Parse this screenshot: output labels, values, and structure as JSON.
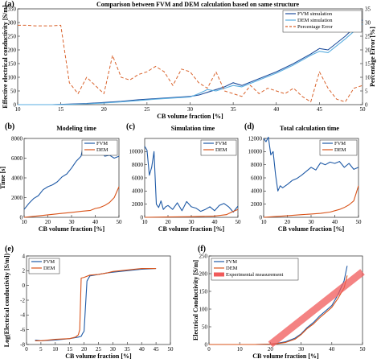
{
  "chart_data": [
    {
      "panel_label": "(a)",
      "type": "line",
      "title": "Comparison between FVM and DEM calculation based on same structure",
      "xlabel": "CB volume fraction [%]",
      "ylabel": "Effective electrical conductivity [S/m]",
      "ylabel_right": "Percentage Error [%]",
      "xlim": [
        10,
        50
      ],
      "ylim": [
        0,
        350
      ],
      "ylim_right": [
        0,
        35
      ],
      "xticks": [
        10,
        15,
        20,
        25,
        30,
        35,
        40,
        45,
        50
      ],
      "yticks": [
        0,
        50,
        100,
        150,
        200,
        250,
        300,
        350
      ],
      "yticks_right": [
        0,
        5,
        10,
        15,
        20,
        25,
        30,
        35
      ],
      "legend": [
        "FVM simulation",
        "DEM simulation",
        "Percentage Error"
      ],
      "colors": {
        "FVM simulation": "#1f4e9c",
        "DEM simulation": "#5aaee0",
        "Percentage Error": "#d9622b"
      },
      "series": [
        {
          "name": "FVM simulation",
          "axis": "left",
          "x": [
            10,
            12,
            14,
            16,
            18,
            20,
            22,
            24,
            26,
            28,
            30,
            31,
            32,
            33,
            34,
            35,
            36,
            38,
            40,
            42,
            44,
            45,
            46,
            48,
            50
          ],
          "y": [
            0,
            0,
            0,
            2,
            4,
            8,
            12,
            18,
            22,
            26,
            30,
            35,
            45,
            55,
            65,
            80,
            70,
            95,
            120,
            150,
            185,
            205,
            200,
            250,
            310
          ]
        },
        {
          "name": "DEM simulation",
          "axis": "left",
          "x": [
            10,
            12,
            14,
            16,
            18,
            20,
            22,
            24,
            26,
            28,
            30,
            31,
            32,
            33,
            34,
            35,
            36,
            38,
            40,
            42,
            44,
            45,
            46,
            48,
            50
          ],
          "y": [
            0,
            0,
            0,
            1,
            3,
            6,
            10,
            15,
            20,
            24,
            28,
            40,
            55,
            50,
            60,
            70,
            65,
            90,
            115,
            145,
            180,
            195,
            190,
            240,
            295
          ]
        },
        {
          "name": "Percentage Error",
          "axis": "right",
          "x": [
            10,
            11,
            12,
            13,
            14,
            15,
            16,
            17,
            18,
            19,
            20,
            21,
            22,
            23,
            24,
            25,
            26,
            27,
            28,
            29,
            30,
            31,
            32,
            33,
            34,
            35,
            36,
            37,
            38,
            39,
            40,
            41,
            42,
            43,
            44,
            45,
            46,
            47,
            48,
            49,
            50
          ],
          "y": [
            29,
            29,
            28.8,
            28.8,
            28.8,
            29,
            8,
            4,
            10,
            7,
            4,
            18,
            10,
            9,
            11,
            12,
            14,
            12,
            7,
            13,
            12,
            8,
            6,
            12,
            5,
            4,
            3,
            7,
            4,
            6,
            5,
            4,
            6,
            3,
            1,
            12,
            6,
            2,
            1,
            6,
            7
          ]
        }
      ]
    },
    {
      "panel_label": "(b)",
      "type": "line",
      "title": "Modeling time",
      "xlabel": "CB volume fraction [%]",
      "ylabel": "Time [s]",
      "xlim": [
        10,
        50
      ],
      "ylim": [
        0,
        8000
      ],
      "xticks": [
        10,
        20,
        30,
        40,
        50
      ],
      "yticks": [
        0,
        2000,
        4000,
        6000,
        8000
      ],
      "legend": [
        "FVM",
        "DEM"
      ],
      "series": [
        {
          "name": "FVM",
          "x": [
            10,
            12,
            14,
            16,
            18,
            20,
            22,
            24,
            26,
            28,
            30,
            32,
            34,
            35,
            36,
            37,
            38,
            39,
            40,
            42,
            44,
            46,
            48,
            50
          ],
          "y": [
            800,
            1400,
            1900,
            2200,
            2800,
            3100,
            3300,
            3600,
            4100,
            4400,
            5000,
            5700,
            6200,
            7300,
            7000,
            6500,
            6800,
            6400,
            6600,
            6900,
            6200,
            6300,
            6000,
            6200
          ]
        },
        {
          "name": "DEM",
          "x": [
            10,
            14,
            18,
            22,
            26,
            30,
            34,
            38,
            40,
            42,
            44,
            46,
            48,
            50
          ],
          "y": [
            0,
            100,
            200,
            300,
            400,
            500,
            600,
            700,
            900,
            1000,
            1200,
            1500,
            2000,
            3100
          ]
        }
      ]
    },
    {
      "panel_label": "(c)",
      "type": "line",
      "title": "Simulation time",
      "xlabel": "CB volume fraction [%]",
      "ylabel": "",
      "xlim": [
        10,
        50
      ],
      "ylim": [
        0,
        12000
      ],
      "xticks": [
        10,
        20,
        30,
        40,
        50
      ],
      "yticks": [
        0,
        2000,
        4000,
        6000,
        8000,
        10000
      ],
      "legend": [
        "FVM",
        "DEM"
      ],
      "series": [
        {
          "name": "FVM",
          "x": [
            10,
            11,
            12,
            13,
            14,
            15,
            16,
            17,
            18,
            19,
            20,
            22,
            24,
            26,
            28,
            30,
            32,
            34,
            36,
            38,
            40,
            42,
            44,
            46,
            48,
            50
          ],
          "y": [
            10800,
            10200,
            6400,
            7600,
            10000,
            2000,
            1500,
            2500,
            1200,
            1600,
            1800,
            1200,
            2200,
            1000,
            2400,
            1600,
            1400,
            900,
            1200,
            1600,
            1000,
            1800,
            2100,
            1600,
            800,
            1700
          ]
        },
        {
          "name": "DEM",
          "x": [
            10,
            20,
            30,
            40,
            45,
            48,
            50
          ],
          "y": [
            0,
            50,
            100,
            200,
            400,
            900,
            1200
          ]
        }
      ]
    },
    {
      "panel_label": "(d)",
      "type": "line",
      "title": "Total calculation time",
      "xlabel": "CB volume fraction [%]",
      "ylabel": "",
      "xlim": [
        10,
        50
      ],
      "ylim": [
        0,
        12000
      ],
      "xticks": [
        10,
        20,
        30,
        40,
        50
      ],
      "yticks": [
        0,
        2000,
        4000,
        6000,
        8000,
        10000,
        12000
      ],
      "legend": [
        "FVM",
        "DEM"
      ],
      "series": [
        {
          "name": "FVM",
          "x": [
            10,
            11,
            12,
            13,
            14,
            15,
            16,
            17,
            18,
            20,
            22,
            24,
            26,
            28,
            30,
            32,
            34,
            36,
            38,
            40,
            42,
            44,
            46,
            48,
            50
          ],
          "y": [
            12000,
            11500,
            12200,
            9500,
            10000,
            6500,
            4000,
            4800,
            4500,
            5000,
            5600,
            5900,
            6400,
            7000,
            7600,
            7200,
            8300,
            8000,
            8400,
            8200,
            8500,
            7600,
            8200,
            7300,
            7600
          ]
        },
        {
          "name": "DEM",
          "x": [
            10,
            14,
            18,
            22,
            26,
            30,
            34,
            38,
            40,
            42,
            44,
            46,
            48,
            50
          ],
          "y": [
            0,
            100,
            200,
            300,
            400,
            500,
            600,
            800,
            1000,
            1200,
            1500,
            1900,
            2500,
            4800
          ]
        }
      ]
    },
    {
      "panel_label": "(e)",
      "type": "line",
      "xlabel": "CB volume fraction [%]",
      "ylabel": "Log(Electrical conductivity [S/m])",
      "xlim": [
        0,
        50
      ],
      "ylim": [
        -8,
        4
      ],
      "xticks": [
        0,
        5,
        10,
        15,
        20,
        25,
        30,
        35,
        40,
        45,
        50
      ],
      "yticks": [
        -8,
        -6,
        -4,
        -2,
        0,
        2,
        4
      ],
      "legend": [
        "FVM",
        "DEM"
      ],
      "series": [
        {
          "name": "FVM",
          "x": [
            3,
            5,
            10,
            15,
            18,
            19,
            19.5,
            20,
            21,
            22,
            25,
            28,
            30,
            35,
            40,
            45
          ],
          "y": [
            -7.4,
            -7.5,
            -7.4,
            -7.2,
            -7.0,
            -6.9,
            -6.5,
            -6.2,
            0.6,
            1.3,
            1.5,
            1.7,
            1.8,
            2.0,
            2.2,
            2.3
          ]
        },
        {
          "name": "DEM",
          "x": [
            3,
            5,
            10,
            15,
            17,
            18,
            18.5,
            19,
            20,
            22,
            25,
            28,
            30,
            35,
            40,
            45
          ],
          "y": [
            -7.5,
            -7.5,
            -7.3,
            -7.2,
            -7.0,
            -6.7,
            -6.0,
            1.0,
            1.1,
            1.4,
            1.5,
            1.7,
            1.9,
            2.1,
            2.3,
            2.3
          ]
        }
      ]
    },
    {
      "panel_label": "(f)",
      "type": "line",
      "xlabel": "CB volume fraction [%]",
      "ylabel": "Electrical Conductivity [S/m]",
      "xlim": [
        0,
        50
      ],
      "ylim": [
        0,
        250
      ],
      "xticks": [
        0,
        10,
        20,
        30,
        40,
        50
      ],
      "yticks": [
        0,
        50,
        100,
        150,
        200,
        250
      ],
      "legend": [
        "FVM",
        "DEM",
        "Experimental measurement"
      ],
      "series": [
        {
          "name": "FVM",
          "x": [
            0,
            5,
            10,
            15,
            20,
            22,
            25,
            28,
            30,
            32,
            34,
            36,
            38,
            40,
            42,
            44,
            45
          ],
          "y": [
            0,
            0,
            0,
            0,
            1,
            3,
            8,
            18,
            30,
            48,
            62,
            80,
            95,
            110,
            140,
            180,
            222
          ]
        },
        {
          "name": "DEM",
          "x": [
            0,
            5,
            10,
            15,
            20,
            22,
            25,
            28,
            30,
            32,
            34,
            36,
            38,
            40,
            42,
            44,
            45
          ],
          "y": [
            0,
            0,
            0,
            0,
            1,
            2,
            6,
            15,
            28,
            45,
            58,
            75,
            90,
            105,
            130,
            160,
            195
          ]
        },
        {
          "name": "Experimental measurement",
          "x": [
            20,
            50
          ],
          "y": [
            0,
            205
          ]
        }
      ]
    }
  ]
}
